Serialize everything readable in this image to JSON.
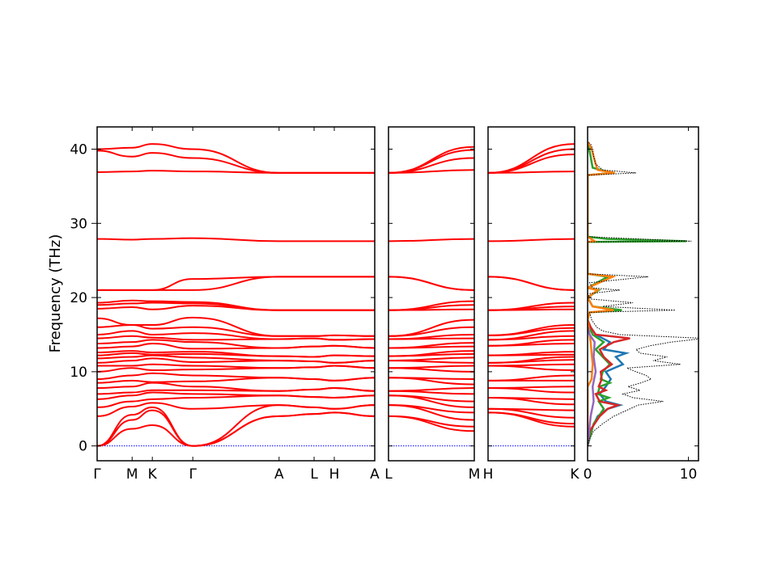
{
  "chart_data": {
    "type": "line",
    "ylabel": "Frequency (THz)",
    "ylim": [
      -2,
      43
    ],
    "yticks": [
      0,
      10,
      20,
      30,
      40
    ],
    "grid": false,
    "colors": {
      "bands": "#ff0000",
      "zero_line": "#0000ff",
      "total_dos": "#000000"
    },
    "band_panels": [
      {
        "id": "path1",
        "kpoints": [
          {
            "label": "Γ",
            "x": 0.0
          },
          {
            "label": "M",
            "x": 0.577
          },
          {
            "label": "K",
            "x": 0.91
          },
          {
            "label": "Γ",
            "x": 1.577
          },
          {
            "label": "A",
            "x": 3.0
          },
          {
            "label": "L",
            "x": 3.577
          },
          {
            "label": "H",
            "x": 3.91
          },
          {
            "label": "A",
            "x": 4.577
          }
        ]
      },
      {
        "id": "path2",
        "kpoints": [
          {
            "label": "L",
            "x": 0.0
          },
          {
            "label": "M",
            "x": 1.42
          }
        ]
      },
      {
        "id": "path3",
        "kpoints": [
          {
            "label": "H",
            "x": 0.0
          },
          {
            "label": "K",
            "x": 1.42
          }
        ]
      }
    ],
    "bands": {
      "path1": [
        [
          0,
          3.5,
          4.8,
          0,
          4.0,
          4.3,
          4.5,
          4.0
        ],
        [
          0,
          2.3,
          2.8,
          0,
          4.0,
          4.3,
          4.5,
          4.0
        ],
        [
          0,
          4.2,
          5.2,
          0,
          5.5,
          5.2,
          5.0,
          5.5
        ],
        [
          4.0,
          5.3,
          5.8,
          5.0,
          5.5,
          5.2,
          5.0,
          5.5
        ],
        [
          5.2,
          6.0,
          6.3,
          6.5,
          6.8,
          6.6,
          6.5,
          6.8
        ],
        [
          6.3,
          6.8,
          7.2,
          7.0,
          6.8,
          6.6,
          6.5,
          6.8
        ],
        [
          7.0,
          7.2,
          7.5,
          7.5,
          7.4,
          7.6,
          7.8,
          7.4
        ],
        [
          7.8,
          8.0,
          8.5,
          8.0,
          7.4,
          7.6,
          7.8,
          7.4
        ],
        [
          8.5,
          8.8,
          8.6,
          8.7,
          9.2,
          9.0,
          8.8,
          9.2
        ],
        [
          9.0,
          9.5,
          9.8,
          9.5,
          9.2,
          9.0,
          8.8,
          9.2
        ],
        [
          10.0,
          10.5,
          10.2,
          10.3,
          10.5,
          10.6,
          10.8,
          10.5
        ],
        [
          10.8,
          10.8,
          11.0,
          10.8,
          10.5,
          10.6,
          10.8,
          10.5
        ],
        [
          11.2,
          11.5,
          11.8,
          11.3,
          11.5,
          11.4,
          11.2,
          11.5
        ],
        [
          11.8,
          12.0,
          12.2,
          11.9,
          11.5,
          11.4,
          11.2,
          11.5
        ],
        [
          12.2,
          12.5,
          12.3,
          12.4,
          12.1,
          12.0,
          12.2,
          12.1
        ],
        [
          12.6,
          12.8,
          12.6,
          12.7,
          12.1,
          12.0,
          12.2,
          12.1
        ],
        [
          13.2,
          13.4,
          13.8,
          13.1,
          13.2,
          13.4,
          13.5,
          13.2
        ],
        [
          13.8,
          14.0,
          14.3,
          14.0,
          13.2,
          13.4,
          13.5,
          13.2
        ],
        [
          14.5,
          14.8,
          14.6,
          14.3,
          14.4,
          14.5,
          14.3,
          14.4
        ],
        [
          15.0,
          15.5,
          15.0,
          15.2,
          14.4,
          14.5,
          14.3,
          14.4
        ],
        [
          16.0,
          16.3,
          15.8,
          16.0,
          14.8,
          14.8,
          14.9,
          14.8
        ],
        [
          17.2,
          16.3,
          16.3,
          17.3,
          14.8,
          14.8,
          14.9,
          14.8
        ],
        [
          18.5,
          18.7,
          18.4,
          18.9,
          18.3,
          18.3,
          18.3,
          18.3
        ],
        [
          19.0,
          19.2,
          19.3,
          19.2,
          18.3,
          18.3,
          18.3,
          18.3
        ],
        [
          19.3,
          19.6,
          19.5,
          19.4,
          18.3,
          18.3,
          18.3,
          18.3
        ],
        [
          21.0,
          21.0,
          21.0,
          21.0,
          22.8,
          22.8,
          22.8,
          22.8
        ],
        [
          21.0,
          21.0,
          21.0,
          22.5,
          22.8,
          22.8,
          22.8,
          22.8
        ],
        [
          27.9,
          27.8,
          27.9,
          28.0,
          27.6,
          27.6,
          27.6,
          27.6
        ],
        [
          36.9,
          37.0,
          37.1,
          37.0,
          36.8,
          36.8,
          36.8,
          36.8
        ],
        [
          39.8,
          39.0,
          39.5,
          38.8,
          36.8,
          36.8,
          36.8,
          36.8
        ],
        [
          40.0,
          40.2,
          40.7,
          40.0,
          36.8,
          36.8,
          36.8,
          36.8
        ]
      ],
      "path2": [
        [
          4.0,
          2.0
        ],
        [
          4.0,
          2.6
        ],
        [
          5.5,
          3.5
        ],
        [
          5.5,
          4.5
        ],
        [
          6.8,
          5.2
        ],
        [
          6.8,
          6.0
        ],
        [
          7.4,
          7.0
        ],
        [
          7.4,
          7.8
        ],
        [
          9.2,
          8.3
        ],
        [
          9.2,
          9.0
        ],
        [
          10.5,
          10.0
        ],
        [
          10.5,
          10.8
        ],
        [
          11.5,
          11.2
        ],
        [
          11.5,
          11.9
        ],
        [
          12.1,
          12.4
        ],
        [
          12.1,
          12.8
        ],
        [
          13.2,
          13.4
        ],
        [
          13.2,
          13.9
        ],
        [
          14.4,
          14.5
        ],
        [
          14.4,
          15.0
        ],
        [
          14.8,
          16.0
        ],
        [
          14.8,
          17.0
        ],
        [
          18.3,
          18.4
        ],
        [
          18.3,
          19.0
        ],
        [
          18.3,
          19.5
        ],
        [
          22.8,
          21.0
        ],
        [
          22.8,
          21.0
        ],
        [
          27.6,
          27.9
        ],
        [
          36.8,
          37.2
        ],
        [
          36.8,
          38.8
        ],
        [
          36.8,
          39.9
        ],
        [
          36.8,
          40.3
        ]
      ],
      "path3": [
        [
          4.5,
          2.6
        ],
        [
          4.5,
          3.0
        ],
        [
          5.0,
          3.8
        ],
        [
          5.0,
          4.8
        ],
        [
          6.5,
          5.6
        ],
        [
          6.5,
          6.3
        ],
        [
          7.8,
          7.2
        ],
        [
          7.8,
          8.0
        ],
        [
          8.8,
          8.8
        ],
        [
          8.8,
          9.5
        ],
        [
          10.8,
          10.2
        ],
        [
          10.8,
          11.0
        ],
        [
          11.2,
          11.6
        ],
        [
          11.2,
          12.0
        ],
        [
          12.2,
          12.3
        ],
        [
          12.2,
          12.7
        ],
        [
          13.5,
          13.8
        ],
        [
          13.5,
          14.3
        ],
        [
          14.3,
          14.8
        ],
        [
          14.3,
          15.5
        ],
        [
          14.9,
          15.9
        ],
        [
          14.9,
          16.3
        ],
        [
          18.3,
          18.4
        ],
        [
          18.3,
          18.8
        ],
        [
          18.3,
          19.3
        ],
        [
          22.8,
          21.0
        ],
        [
          22.8,
          21.0
        ],
        [
          27.6,
          27.9
        ],
        [
          36.8,
          37.0
        ],
        [
          36.8,
          39.3
        ],
        [
          36.8,
          40.0
        ],
        [
          36.8,
          40.7
        ]
      ]
    },
    "dos": {
      "xlim": [
        0,
        11
      ],
      "xticks": [
        0,
        10
      ],
      "total": [
        [
          0,
          0
        ],
        [
          1,
          0.2
        ],
        [
          2,
          0.6
        ],
        [
          3,
          1.5
        ],
        [
          4,
          2.6
        ],
        [
          5,
          4.2
        ],
        [
          5.5,
          5.0
        ],
        [
          6,
          7.5
        ],
        [
          6.5,
          4.5
        ],
        [
          7,
          3.5
        ],
        [
          7.5,
          5.2
        ],
        [
          8,
          4.0
        ],
        [
          8.5,
          5.3
        ],
        [
          9,
          6.3
        ],
        [
          9.5,
          5.8
        ],
        [
          10,
          4.8
        ],
        [
          10.5,
          3.9
        ],
        [
          11,
          9.2
        ],
        [
          11.5,
          6.5
        ],
        [
          12,
          7.9
        ],
        [
          12.5,
          5.2
        ],
        [
          13,
          4.8
        ],
        [
          13.5,
          6.2
        ],
        [
          14,
          8.3
        ],
        [
          14.5,
          11.6
        ],
        [
          15,
          3.2
        ],
        [
          15.5,
          1.5
        ],
        [
          16,
          0.9
        ],
        [
          17,
          0.4
        ],
        [
          18,
          0.2
        ],
        [
          18.3,
          8.7
        ],
        [
          18.8,
          1.5
        ],
        [
          19.3,
          4.5
        ],
        [
          19.8,
          0.3
        ],
        [
          20.5,
          0
        ],
        [
          21,
          3.2
        ],
        [
          21.3,
          0.5
        ],
        [
          22,
          0.2
        ],
        [
          22.8,
          6.0
        ],
        [
          23.2,
          0
        ],
        [
          27.5,
          0
        ],
        [
          27.6,
          10.3
        ],
        [
          27.9,
          5.0
        ],
        [
          28.2,
          0
        ],
        [
          36.5,
          0
        ],
        [
          36.8,
          4.8
        ],
        [
          37.2,
          1.5
        ],
        [
          38,
          0.8
        ],
        [
          39,
          0.6
        ],
        [
          40,
          0.5
        ],
        [
          40.7,
          0.3
        ],
        [
          41,
          0
        ]
      ],
      "partials": [
        {
          "color": "#1f77b4",
          "points": [
            [
              0,
              0
            ],
            [
              2,
              0.3
            ],
            [
              4,
              1.0
            ],
            [
              5,
              2.0
            ],
            [
              5.5,
              3.2
            ],
            [
              6,
              1.8
            ],
            [
              7,
              1.2
            ],
            [
              8,
              1.8
            ],
            [
              9,
              2.3
            ],
            [
              10,
              1.8
            ],
            [
              11,
              3.5
            ],
            [
              12,
              2.8
            ],
            [
              12.5,
              3.8
            ],
            [
              13,
              1.6
            ],
            [
              14,
              2.2
            ],
            [
              14.5,
              1.5
            ],
            [
              15,
              0.8
            ],
            [
              16,
              0.3
            ],
            [
              17,
              0
            ]
          ]
        },
        {
          "color": "#2ca02c",
          "points": [
            [
              0,
              0
            ],
            [
              2,
              0.4
            ],
            [
              3,
              0.6
            ],
            [
              4,
              1.1
            ],
            [
              5,
              1.6
            ],
            [
              6,
              1.1
            ],
            [
              6.5,
              2.1
            ],
            [
              7,
              1.0
            ],
            [
              8,
              1.2
            ],
            [
              8.5,
              2.2
            ],
            [
              9,
              1.3
            ],
            [
              10,
              1.5
            ],
            [
              11,
              2.2
            ],
            [
              12,
              1.5
            ],
            [
              13,
              0.8
            ],
            [
              14,
              1.6
            ],
            [
              15,
              0.5
            ],
            [
              16,
              0.2
            ],
            [
              17,
              0
            ],
            [
              18,
              0.2
            ],
            [
              18.3,
              3.4
            ],
            [
              18.8,
              0.5
            ],
            [
              20,
              0
            ],
            [
              21,
              1.1
            ],
            [
              21.3,
              0
            ],
            [
              22.8,
              2.0
            ],
            [
              23.2,
              0
            ],
            [
              27.5,
              0
            ],
            [
              27.6,
              9.8
            ],
            [
              27.9,
              2.0
            ],
            [
              28.2,
              0
            ],
            [
              36.5,
              0
            ],
            [
              36.8,
              2.4
            ],
            [
              37.5,
              0.5
            ],
            [
              39,
              0.3
            ],
            [
              41,
              0
            ]
          ]
        },
        {
          "color": "#d62728",
          "points": [
            [
              0,
              0
            ],
            [
              2,
              0.2
            ],
            [
              4,
              1.2
            ],
            [
              5,
              2.0
            ],
            [
              5.5,
              3.0
            ],
            [
              6,
              1.2
            ],
            [
              7,
              0.8
            ],
            [
              7.5,
              1.8
            ],
            [
              8,
              1.1
            ],
            [
              9,
              1.4
            ],
            [
              10,
              1.3
            ],
            [
              11,
              2.4
            ],
            [
              12,
              1.6
            ],
            [
              13,
              1.2
            ],
            [
              14,
              2.6
            ],
            [
              14.5,
              4.2
            ],
            [
              15,
              0.8
            ],
            [
              16,
              0.3
            ],
            [
              17,
              0
            ]
          ]
        },
        {
          "color": "#ff7f0e",
          "points": [
            [
              0,
              0
            ],
            [
              8,
              0
            ],
            [
              9,
              0.4
            ],
            [
              11,
              0.5
            ],
            [
              14,
              0.3
            ],
            [
              17,
              0
            ],
            [
              18,
              0.2
            ],
            [
              18.3,
              2.6
            ],
            [
              18.8,
              0.5
            ],
            [
              20,
              0
            ],
            [
              21,
              1.0
            ],
            [
              21.3,
              0
            ],
            [
              22.8,
              2.5
            ],
            [
              23.2,
              0
            ],
            [
              27.5,
              0
            ],
            [
              27.6,
              0.7
            ],
            [
              28.2,
              0
            ],
            [
              36.5,
              0
            ],
            [
              36.8,
              2.7
            ],
            [
              37.2,
              1.0
            ],
            [
              38,
              0.8
            ],
            [
              39,
              0.6
            ],
            [
              40,
              0.4
            ],
            [
              41,
              0
            ]
          ]
        },
        {
          "color": "#9467bd",
          "points": [
            [
              0,
              0
            ],
            [
              4,
              0.3
            ],
            [
              6,
              0.6
            ],
            [
              8,
              0.5
            ],
            [
              10,
              0.8
            ],
            [
              12,
              0.6
            ],
            [
              14,
              0.7
            ],
            [
              15,
              0.2
            ],
            [
              16,
              0
            ]
          ]
        }
      ]
    }
  }
}
